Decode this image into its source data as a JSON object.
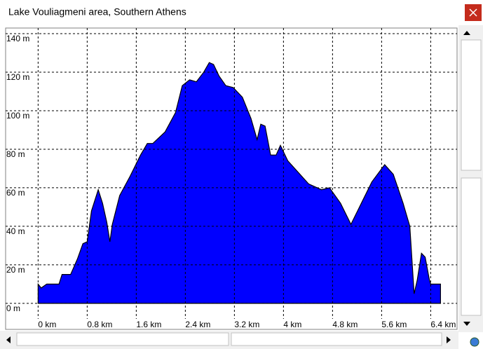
{
  "window": {
    "title": "Lake Vouliagmeni area, Southern Athens"
  },
  "chart_data": {
    "type": "area",
    "color": "#0000ff",
    "grid": true,
    "x": [
      0,
      0.05,
      0.14,
      0.34,
      0.39,
      0.53,
      0.64,
      0.73,
      0.8,
      0.87,
      0.98,
      1.05,
      1.12,
      1.17,
      1.21,
      1.33,
      1.5,
      1.67,
      1.78,
      1.87,
      2.07,
      2.24,
      2.35,
      2.47,
      2.58,
      2.7,
      2.79,
      2.86,
      2.95,
      3.06,
      3.18,
      3.33,
      3.47,
      3.57,
      3.63,
      3.7,
      3.79,
      3.88,
      3.95,
      4.07,
      4.24,
      4.41,
      4.62,
      4.75,
      4.93,
      5.1,
      5.27,
      5.44,
      5.65,
      5.79,
      5.95,
      6.06,
      6.13,
      6.18,
      6.25,
      6.31,
      6.38,
      6.4,
      6.56
    ],
    "values": [
      10,
      8,
      10,
      10,
      15,
      15,
      23,
      31,
      32,
      48,
      59,
      52,
      42,
      32,
      41,
      56,
      66,
      77,
      83,
      83,
      89,
      99,
      113,
      116,
      115,
      120,
      125,
      124,
      118,
      113,
      112,
      107,
      96,
      85,
      93,
      92,
      77,
      77,
      82,
      74,
      68,
      62,
      59,
      60,
      52,
      41,
      52,
      63,
      72,
      67,
      52,
      40,
      5,
      12,
      26,
      24,
      12,
      10,
      10
    ],
    "xlim": [
      -0.53,
      6.83
    ],
    "ylim": [
      -4.4,
      142.9
    ],
    "xticks": [
      {
        "value": 0,
        "label": "0 km"
      },
      {
        "value": 0.8,
        "label": "0.8 km"
      },
      {
        "value": 1.6,
        "label": "1.6 km"
      },
      {
        "value": 2.4,
        "label": "2.4 km"
      },
      {
        "value": 3.2,
        "label": "3.2 km"
      },
      {
        "value": 4,
        "label": "4 km"
      },
      {
        "value": 4.8,
        "label": "4.8 km"
      },
      {
        "value": 5.6,
        "label": "5.6 km"
      },
      {
        "value": 6.4,
        "label": "6.4 km"
      }
    ],
    "yticks": [
      {
        "value": 0,
        "label": "0 m"
      },
      {
        "value": 20,
        "label": "20 m"
      },
      {
        "value": 40,
        "label": "40 m"
      },
      {
        "value": 60,
        "label": "60 m"
      },
      {
        "value": 80,
        "label": "80 m"
      },
      {
        "value": 100,
        "label": "100 m"
      },
      {
        "value": 120,
        "label": "120 m"
      },
      {
        "value": 140,
        "label": "140 m"
      }
    ]
  }
}
